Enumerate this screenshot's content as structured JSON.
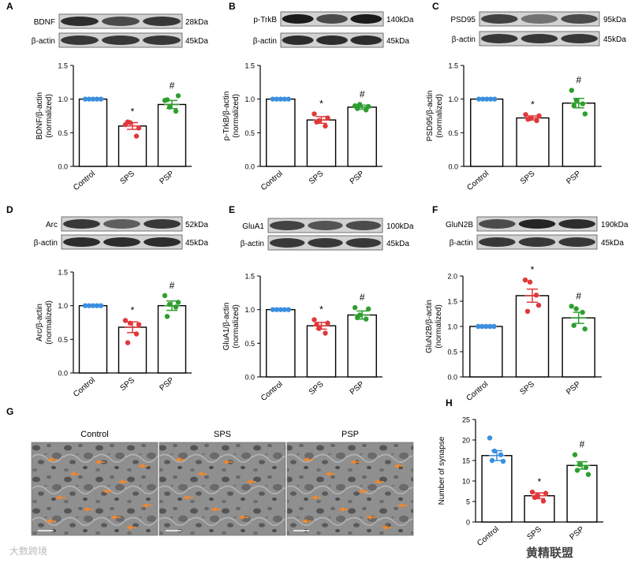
{
  "colors": {
    "control": "#3b8fe0",
    "sps": "#e0393b",
    "psp": "#2e9e2e",
    "arrow": "#f0882e"
  },
  "panels": [
    {
      "letter": "A",
      "protein": "BDNF",
      "kda": "28kDa",
      "actin": "β-actin",
      "actin_kda": "45kDa",
      "ylabel1": "BDNF/β-actin",
      "ylabel2": "(normalized)",
      "sps_mark": "*",
      "psp_mark": "#"
    },
    {
      "letter": "B",
      "protein": "p-TrkB",
      "kda": "140kDa",
      "actin": "β-actin",
      "actin_kda": "45kDa",
      "ylabel1": "p-TrkB/β-actin",
      "ylabel2": "(normalized)",
      "sps_mark": "*",
      "psp_mark": "#"
    },
    {
      "letter": "C",
      "protein": "PSD95",
      "kda": "95kDa",
      "actin": "β-actin",
      "actin_kda": "45kDa",
      "ylabel1": "PSD95/β-actin",
      "ylabel2": "(normalized)",
      "sps_mark": "*",
      "psp_mark": "#"
    },
    {
      "letter": "D",
      "protein": "Arc",
      "kda": "52kDa",
      "actin": "β-actin",
      "actin_kda": "45kDa",
      "ylabel1": "Arc/β-actin",
      "ylabel2": "(normalized)",
      "sps_mark": "*",
      "psp_mark": "#"
    },
    {
      "letter": "E",
      "protein": "GluA1",
      "kda": "100kDa",
      "actin": "β-actin",
      "actin_kda": "45kDa",
      "ylabel1": "GluA1/β-actin",
      "ylabel2": "(normalized)",
      "sps_mark": "*",
      "psp_mark": "#"
    },
    {
      "letter": "F",
      "protein": "GluN2B",
      "kda": "190kDa",
      "actin": "β-actin",
      "actin_kda": "45kDa",
      "ylabel1": "GluN2B/β-actin",
      "ylabel2": "(normalized)",
      "sps_mark": "*",
      "psp_mark": "#"
    },
    {
      "letter": "H",
      "protein": "",
      "kda": "",
      "actin": "",
      "actin_kda": "",
      "ylabel1": "Number of synapse",
      "ylabel2": "",
      "sps_mark": "*",
      "psp_mark": "#"
    }
  ],
  "micrograph": {
    "letter": "G",
    "labels": [
      "Control",
      "SPS",
      "PSP"
    ]
  },
  "watermarks": {
    "left": "大数跨境",
    "right": "黄精联盟"
  },
  "chart_data": [
    {
      "type": "bar",
      "id": "A",
      "categories": [
        "Control",
        "SPS",
        "PSP"
      ],
      "values": [
        1.0,
        0.6,
        0.92
      ],
      "sem": [
        0.0,
        0.05,
        0.06
      ],
      "points": [
        [
          1,
          1,
          1,
          1,
          1
        ],
        [
          0.62,
          0.65,
          0.45,
          0.66,
          0.57
        ],
        [
          0.98,
          0.88,
          0.82,
          0.99,
          1.05
        ]
      ],
      "ylabel": "BDNF/β-actin (normalized)",
      "ylim": [
        0,
        1.5
      ],
      "yticks": [
        "0.0",
        "0.5",
        "1.0",
        "1.5"
      ]
    },
    {
      "type": "bar",
      "id": "B",
      "categories": [
        "Control",
        "SPS",
        "PSP"
      ],
      "values": [
        1.0,
        0.69,
        0.88
      ],
      "sem": [
        0.0,
        0.05,
        0.03
      ],
      "points": [
        [
          1,
          1,
          1,
          1,
          1
        ],
        [
          0.78,
          0.68,
          0.6,
          0.66,
          0.72
        ],
        [
          0.9,
          0.92,
          0.84,
          0.86,
          0.89
        ]
      ],
      "ylabel": "p-TrkB/β-actin (normalized)",
      "ylim": [
        0,
        1.5
      ],
      "yticks": [
        "0.0",
        "0.5",
        "1.0",
        "1.5"
      ]
    },
    {
      "type": "bar",
      "id": "C",
      "categories": [
        "Control",
        "SPS",
        "PSP"
      ],
      "values": [
        1.0,
        0.72,
        0.94
      ],
      "sem": [
        0.0,
        0.03,
        0.07
      ],
      "points": [
        [
          1,
          1,
          1,
          1,
          1
        ],
        [
          0.77,
          0.71,
          0.68,
          0.7,
          0.75
        ],
        [
          1.13,
          0.98,
          0.93,
          0.9,
          0.78
        ]
      ],
      "ylabel": "PSD95/β-actin (normalized)",
      "ylim": [
        0,
        1.5
      ],
      "yticks": [
        "0.0",
        "0.5",
        "1.0",
        "1.5"
      ]
    },
    {
      "type": "bar",
      "id": "D",
      "categories": [
        "Control",
        "SPS",
        "PSP"
      ],
      "values": [
        1.0,
        0.68,
        1.0
      ],
      "sem": [
        0.0,
        0.08,
        0.07
      ],
      "points": [
        [
          1,
          1,
          1,
          1,
          1
        ],
        [
          0.78,
          0.74,
          0.58,
          0.45,
          0.72
        ],
        [
          1.15,
          1.02,
          0.98,
          0.84,
          1.05
        ]
      ],
      "ylabel": "Arc/β-actin (normalized)",
      "ylim": [
        0,
        1.5
      ],
      "yticks": [
        "0.0",
        "0.5",
        "1.0",
        "1.5"
      ]
    },
    {
      "type": "bar",
      "id": "E",
      "categories": [
        "Control",
        "SPS",
        "PSP"
      ],
      "values": [
        1.0,
        0.76,
        0.92
      ],
      "sem": [
        0.0,
        0.05,
        0.06
      ],
      "points": [
        [
          1,
          1,
          1,
          1,
          1
        ],
        [
          0.85,
          0.72,
          0.65,
          0.78,
          0.8
        ],
        [
          1.03,
          0.92,
          0.86,
          0.88,
          1.01
        ]
      ],
      "ylabel": "GluA1/β-actin (normalized)",
      "ylim": [
        0,
        1.5
      ],
      "yticks": [
        "0.0",
        "0.5",
        "1.0",
        "1.5"
      ]
    },
    {
      "type": "bar",
      "id": "F",
      "categories": [
        "Control",
        "SPS",
        "PSP"
      ],
      "values": [
        1.0,
        1.61,
        1.17
      ],
      "sem": [
        0.0,
        0.13,
        0.11
      ],
      "points": [
        [
          1,
          1,
          1,
          1,
          1
        ],
        [
          1.92,
          1.88,
          1.62,
          1.3,
          1.42
        ],
        [
          1.4,
          1.35,
          1.28,
          1.02,
          0.95
        ]
      ],
      "ylabel": "GluN2B/β-actin (normalized)",
      "ylim": [
        0,
        2.0
      ],
      "yticks": [
        "0.0",
        "0.5",
        "1.0",
        "1.5",
        "2.0"
      ]
    },
    {
      "type": "bar",
      "id": "H",
      "categories": [
        "Control",
        "SPS",
        "PSP"
      ],
      "values": [
        16.2,
        6.4,
        13.8
      ],
      "sem": [
        1.2,
        0.7,
        0.9
      ],
      "points": [
        [
          20.5,
          17.3,
          16.4,
          15.0,
          14.8
        ],
        [
          7.3,
          6.4,
          5.1,
          6.0,
          7.0
        ],
        [
          16.4,
          14.0,
          13.3,
          12.6,
          11.6
        ]
      ],
      "ylabel": "Number of synapse",
      "ylim": [
        0,
        25
      ],
      "yticks": [
        "0",
        "5",
        "10",
        "15",
        "20",
        "25"
      ]
    }
  ]
}
